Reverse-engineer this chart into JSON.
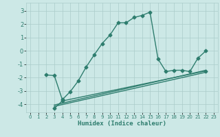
{
  "title": "",
  "xlabel": "Humidex (Indice chaleur)",
  "ylabel": "",
  "background_color": "#cce8e6",
  "grid_color": "#aaccca",
  "line_color": "#2e7d6e",
  "xlim": [
    -0.5,
    23.5
  ],
  "ylim": [
    -4.6,
    3.6
  ],
  "yticks": [
    -4,
    -3,
    -2,
    -1,
    0,
    1,
    2,
    3
  ],
  "xticks": [
    0,
    1,
    2,
    3,
    4,
    5,
    6,
    7,
    8,
    9,
    10,
    11,
    12,
    13,
    14,
    15,
    16,
    17,
    18,
    19,
    20,
    21,
    22,
    23
  ],
  "series1_x": [
    2,
    3,
    4,
    5,
    6,
    7,
    8,
    9,
    10,
    11,
    12,
    13,
    14,
    15,
    16,
    17,
    18,
    19,
    20,
    21,
    22
  ],
  "series1_y": [
    -1.8,
    -1.85,
    -3.65,
    -3.05,
    -2.25,
    -1.2,
    -0.3,
    0.55,
    1.2,
    2.1,
    2.1,
    2.5,
    2.65,
    2.9,
    -0.6,
    -1.55,
    -1.45,
    -1.45,
    -1.55,
    -0.55,
    0.0
  ],
  "series2_x": [
    3,
    4,
    22
  ],
  "series2_y": [
    -4.3,
    -3.75,
    -1.5
  ],
  "series3_x": [
    3,
    22
  ],
  "series3_y": [
    -4.05,
    -1.45
  ],
  "series4_x": [
    3,
    22
  ],
  "series4_y": [
    -4.15,
    -1.6
  ],
  "marker_size": 2.5,
  "line_width": 1.0
}
